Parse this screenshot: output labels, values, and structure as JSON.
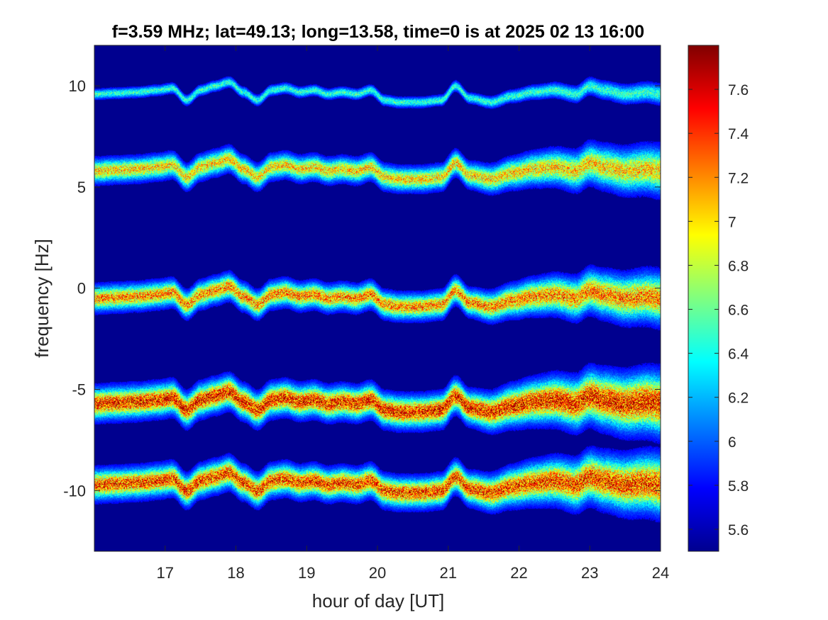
{
  "chart_data": {
    "type": "heatmap",
    "title": "f=3.59 MHz;  lat=49.13; long=13.58, time=0 is at 2025 02 13 16:00",
    "xlabel": "hour of day [UT]",
    "ylabel": "frequency [Hz]",
    "xlim": [
      16,
      24
    ],
    "ylim": [
      -13,
      12
    ],
    "x_ticks": [
      17,
      18,
      19,
      20,
      21,
      22,
      23,
      24
    ],
    "x_tick_labels": [
      "17",
      "18",
      "19",
      "20",
      "21",
      "22",
      "23",
      "24"
    ],
    "y_ticks": [
      -10,
      -5,
      0,
      5,
      10
    ],
    "y_tick_labels": [
      "-10",
      "-5",
      "0",
      "5",
      "10"
    ],
    "colormap": "jet",
    "background_color": "#00008f",
    "colorbar": {
      "range": [
        5.5,
        7.8
      ],
      "ticks": [
        5.6,
        5.8,
        6,
        6.2,
        6.4,
        6.6,
        6.8,
        7,
        7.2,
        7.4,
        7.6
      ],
      "tick_labels": [
        "5.6",
        "5.8",
        "6",
        "6.2",
        "6.4",
        "6.6",
        "6.8",
        "7",
        "7.2",
        "7.4",
        "7.6"
      ]
    },
    "series": [
      {
        "center": 9.6,
        "intensity": 0.45,
        "spread": 0.14
      },
      {
        "center": 5.8,
        "intensity": 0.75,
        "spread": 0.32
      },
      {
        "center": -0.5,
        "intensity": 0.85,
        "spread": 0.34
      },
      {
        "center": -5.7,
        "intensity": 1.0,
        "spread": 0.42
      },
      {
        "center": -9.7,
        "intensity": 0.95,
        "spread": 0.4
      }
    ],
    "trace_offsets": {
      "x": [
        16.0,
        16.3,
        16.6,
        16.9,
        17.1,
        17.3,
        17.5,
        17.7,
        17.9,
        18.1,
        18.3,
        18.5,
        18.7,
        18.9,
        19.1,
        19.3,
        19.5,
        19.7,
        19.9,
        20.1,
        20.3,
        20.6,
        20.9,
        21.1,
        21.3,
        21.6,
        21.9,
        22.2,
        22.5,
        22.8,
        23.0,
        23.2,
        23.5,
        23.8,
        24.0
      ],
      "y": [
        0.0,
        0.05,
        0.1,
        0.2,
        0.3,
        -0.3,
        0.2,
        0.4,
        0.6,
        0.1,
        -0.3,
        0.2,
        0.3,
        0.1,
        0.2,
        0.0,
        0.1,
        0.0,
        0.2,
        -0.3,
        -0.4,
        -0.4,
        -0.3,
        0.4,
        -0.2,
        -0.4,
        -0.1,
        0.1,
        0.2,
        0.0,
        0.4,
        0.2,
        0.0,
        0.1,
        0.0
      ]
    }
  }
}
